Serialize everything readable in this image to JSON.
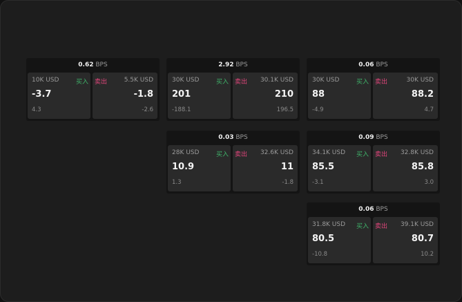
{
  "labels": {
    "buy": "买入",
    "sell": "卖出",
    "unit": "BPS"
  },
  "colors": {
    "buy": "#3fb36a",
    "sell": "#e0457b"
  },
  "quotes": [
    {
      "spread": "0.62",
      "bid_qty": "10K USD",
      "bid": "-3.7",
      "bid_chg": "4.3",
      "ask_qty": "5.5K USD",
      "ask": "-1.8",
      "ask_chg": "-2.6"
    },
    {
      "spread": "2.92",
      "bid_qty": "30K USD",
      "bid": "201",
      "bid_chg": "-188.1",
      "ask_qty": "30.1K USD",
      "ask": "210",
      "ask_chg": "196.5"
    },
    {
      "spread": "0.06",
      "bid_qty": "30K USD",
      "bid": "88",
      "bid_chg": "-4.9",
      "ask_qty": "30K USD",
      "ask": "88.2",
      "ask_chg": "4.7"
    },
    {
      "spread": "0.03",
      "bid_qty": "28K USD",
      "bid": "10.9",
      "bid_chg": "1.3",
      "ask_qty": "32.6K USD",
      "ask": "11",
      "ask_chg": "-1.8"
    },
    {
      "spread": "0.09",
      "bid_qty": "34.1K USD",
      "bid": "85.5",
      "bid_chg": "-3.1",
      "ask_qty": "32.8K USD",
      "ask": "85.8",
      "ask_chg": "3.0"
    },
    {
      "spread": "0.06",
      "bid_qty": "31.8K USD",
      "bid": "80.5",
      "bid_chg": "-10.8",
      "ask_qty": "39.1K USD",
      "ask": "80.7",
      "ask_chg": "10.2"
    }
  ]
}
